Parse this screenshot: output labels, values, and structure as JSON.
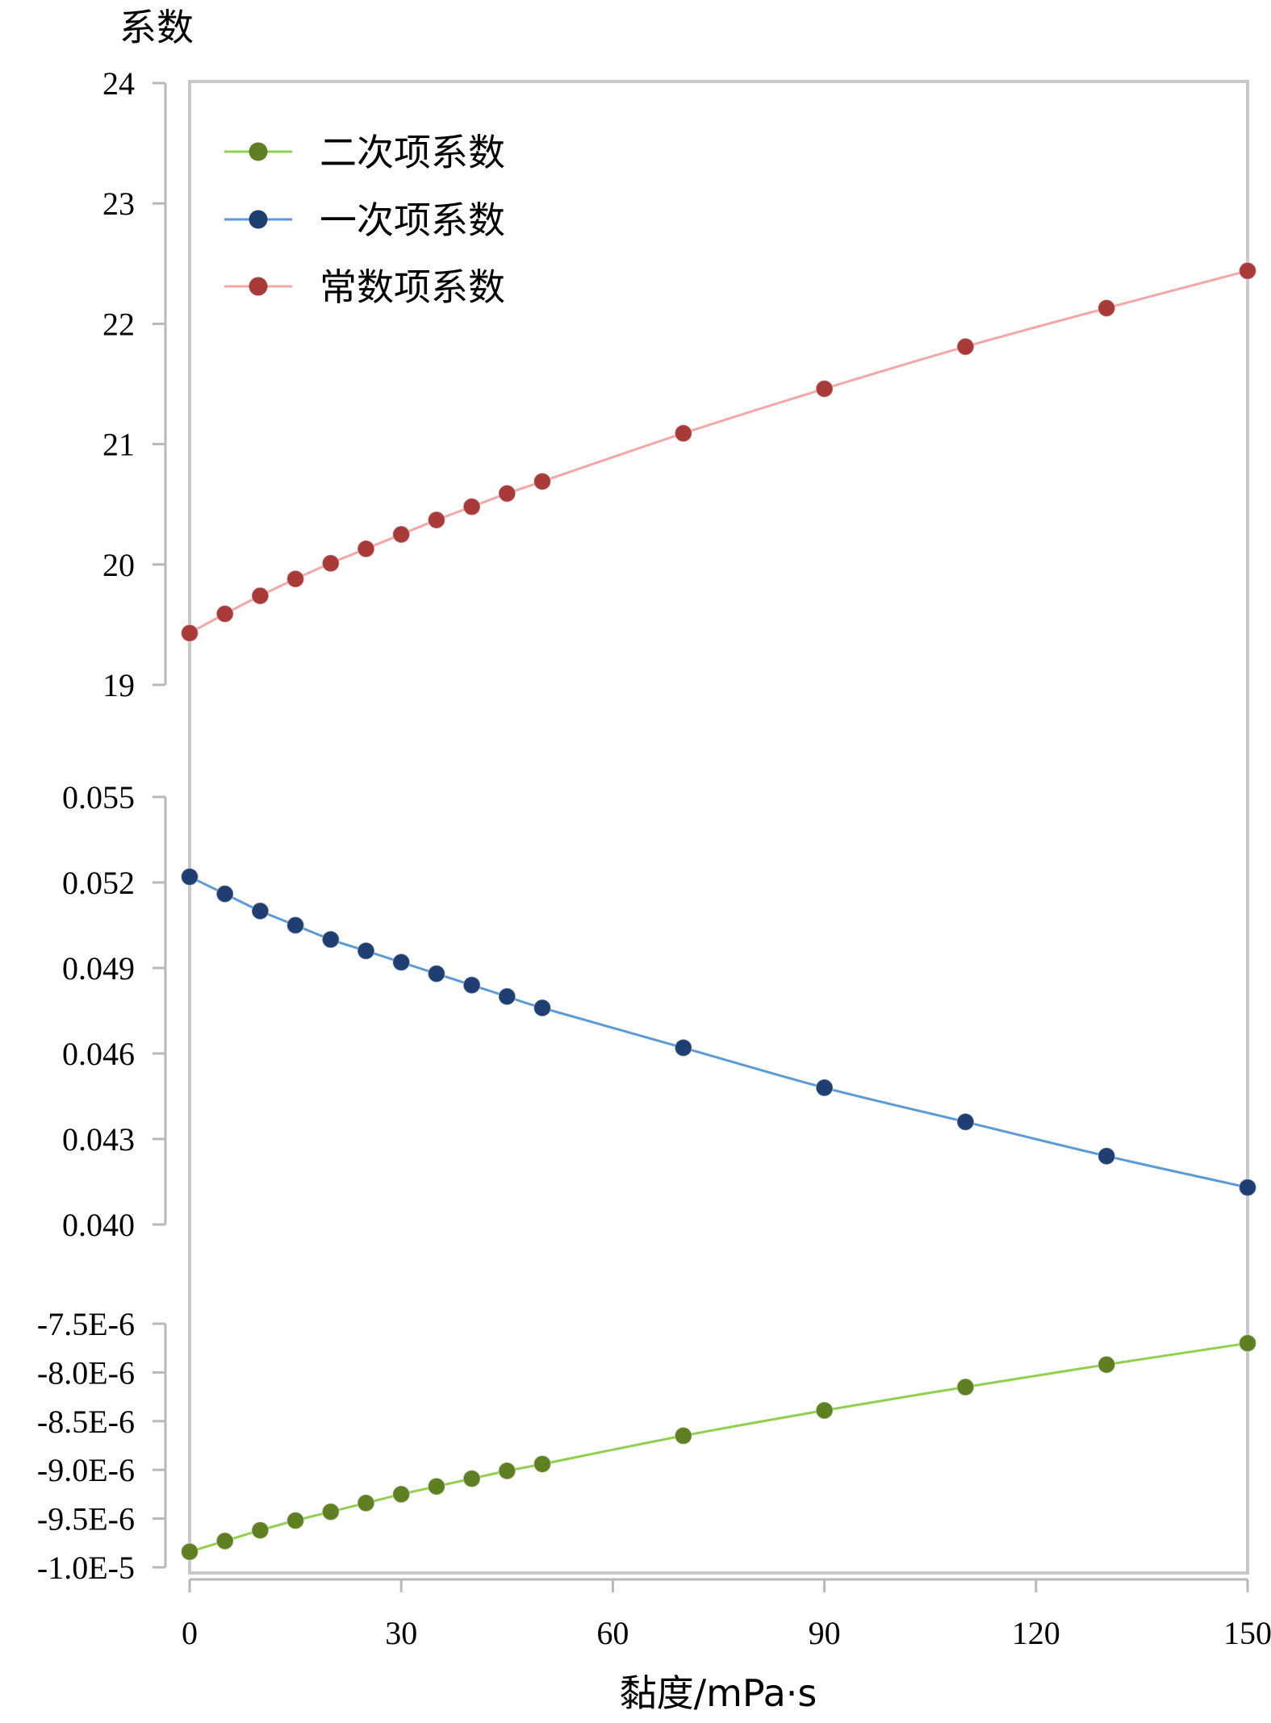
{
  "chart_data": {
    "type": "line",
    "y_title": "系数",
    "xlabel": "黏度/mPa·s",
    "x_ticks": [
      "0",
      "30",
      "60",
      "90",
      "120",
      "150"
    ],
    "xlim": [
      0,
      150
    ],
    "grid": false,
    "legend_position": "top-left",
    "panels": [
      {
        "name": "常数项系数",
        "ylim": [
          19,
          24
        ],
        "y_ticks": [
          "24",
          "23",
          "22",
          "21",
          "20",
          "19"
        ]
      },
      {
        "name": "一次项系数",
        "ylim": [
          0.04,
          0.055
        ],
        "y_ticks": [
          "0.055",
          "0.052",
          "0.049",
          "0.046",
          "0.043",
          "0.040"
        ]
      },
      {
        "name": "二次项系数",
        "ylim": [
          -1e-05,
          -7.5e-06
        ],
        "y_ticks": [
          "-7.5E-6",
          "-8.0E-6",
          "-8.5E-6",
          "-9.0E-6",
          "-9.5E-6",
          "-1.0E-5"
        ]
      }
    ],
    "series": [
      {
        "name": "二次项系数",
        "panel": 2,
        "line_color": "#8fd14f",
        "marker_color": "#5e7f22",
        "x": [
          0,
          5,
          10,
          15,
          20,
          25,
          30,
          35,
          40,
          45,
          50,
          70,
          90,
          110,
          130,
          150
        ],
        "y": [
          -9.84e-06,
          -9.73e-06,
          -9.62e-06,
          -9.52e-06,
          -9.43e-06,
          -9.34e-06,
          -9.25e-06,
          -9.17e-06,
          -9.09e-06,
          -9.01e-06,
          -8.94e-06,
          -8.65e-06,
          -8.39e-06,
          -8.15e-06,
          -7.92e-06,
          -7.7e-06
        ]
      },
      {
        "name": "一次项系数",
        "panel": 1,
        "line_color": "#5b9bd5",
        "marker_color": "#1f3f73",
        "x": [
          0,
          5,
          10,
          15,
          20,
          25,
          30,
          35,
          40,
          45,
          50,
          70,
          90,
          110,
          130,
          150
        ],
        "y": [
          0.0522,
          0.0516,
          0.051,
          0.0505,
          0.05,
          0.0496,
          0.0492,
          0.0488,
          0.0484,
          0.048,
          0.0476,
          0.0462,
          0.0448,
          0.0436,
          0.0424,
          0.0413
        ]
      },
      {
        "name": "常数项系数",
        "panel": 0,
        "line_color": "#f4a7a7",
        "marker_color": "#a83a3a",
        "x": [
          0,
          5,
          10,
          15,
          20,
          25,
          30,
          35,
          40,
          45,
          50,
          70,
          90,
          110,
          130,
          150
        ],
        "y": [
          19.43,
          19.59,
          19.74,
          19.88,
          20.01,
          20.13,
          20.25,
          20.37,
          20.48,
          20.59,
          20.69,
          21.09,
          21.46,
          21.81,
          22.13,
          22.44
        ]
      }
    ]
  }
}
